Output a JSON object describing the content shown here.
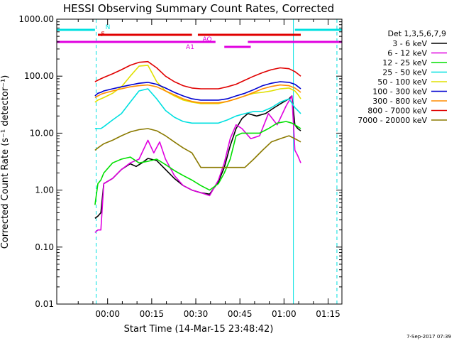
{
  "chart_data": {
    "type": "line",
    "title": "HESSI Observing Summary Count Rates, Corrected",
    "xlabel": "Start Time (14-Mar-15 23:48:42)",
    "ylabel": "Corrected Count Rate (s⁻¹ detector⁻¹)",
    "y_scale": "log",
    "ylim": [
      0.01,
      1000
    ],
    "xlim_minutes_from_start": [
      -6,
      91
    ],
    "x_ticks": [
      {
        "min": 11.3,
        "label": "00:00"
      },
      {
        "min": 26.3,
        "label": "00:15"
      },
      {
        "min": 41.3,
        "label": "00:30"
      },
      {
        "min": 56.3,
        "label": "00:45"
      },
      {
        "min": 71.3,
        "label": "01:00"
      },
      {
        "min": 86.3,
        "label": "01:15"
      }
    ],
    "y_ticks": [
      {
        "value": 1000,
        "label": "1000.00"
      },
      {
        "value": 100,
        "label": "100.00"
      },
      {
        "value": 10,
        "label": "10.00"
      },
      {
        "value": 1,
        "label": "1.00"
      },
      {
        "value": 0.1,
        "label": "0.10"
      },
      {
        "value": 0.01,
        "label": "0.01"
      }
    ],
    "legend_title": "Det 1,3,5,6,7,9",
    "legend_position": "right",
    "series": [
      {
        "name": "3 - 6 keV",
        "color": "#000000",
        "x": [
          7,
          8,
          9,
          10,
          13,
          16,
          19,
          21,
          23,
          25,
          28,
          31,
          34,
          37,
          40,
          43,
          46,
          49,
          51,
          53,
          55,
          57,
          59,
          62,
          65,
          68,
          71,
          73,
          74,
          75,
          76,
          77
        ],
        "y": [
          0.32,
          0.35,
          0.4,
          1.3,
          1.6,
          2.3,
          2.9,
          2.6,
          3.0,
          3.6,
          3.3,
          2.3,
          1.6,
          1.2,
          1.0,
          0.9,
          0.85,
          1.4,
          2.5,
          6,
          12,
          18,
          22,
          20,
          22,
          28,
          35,
          40,
          45,
          14,
          12,
          11
        ]
      },
      {
        "name": "6 - 12 keV",
        "color": "#e000e0",
        "x": [
          7,
          8,
          9,
          10,
          13,
          16,
          19,
          22,
          25,
          27,
          29,
          31,
          34,
          37,
          40,
          43,
          46,
          49,
          51,
          53,
          55,
          57,
          60,
          63,
          66,
          69,
          72,
          74,
          75,
          76,
          77
        ],
        "y": [
          0.18,
          0.2,
          0.2,
          1.3,
          1.6,
          2.3,
          3.0,
          3.5,
          7.5,
          4.5,
          7.0,
          3.5,
          1.8,
          1.2,
          1.0,
          0.9,
          0.8,
          1.5,
          3.0,
          8,
          14,
          12,
          8,
          9,
          22,
          14,
          30,
          45,
          5,
          4,
          3
        ]
      },
      {
        "name": "12 - 25 keV",
        "color": "#00e000",
        "x": [
          7,
          8,
          9,
          10,
          13,
          16,
          19,
          22,
          25,
          28,
          31,
          34,
          37,
          40,
          43,
          46,
          49,
          51,
          53,
          55,
          57,
          60,
          63,
          66,
          69,
          72,
          74,
          75,
          76,
          77
        ],
        "y": [
          0.55,
          1.3,
          1.5,
          2.0,
          3.0,
          3.5,
          3.8,
          3.0,
          3.2,
          3.5,
          2.8,
          2.2,
          1.8,
          1.5,
          1.2,
          1.0,
          1.3,
          2.0,
          3.5,
          9,
          10,
          10,
          10,
          12,
          15,
          16,
          15,
          14,
          13,
          12
        ]
      },
      {
        "name": "25 - 50 keV",
        "color": "#00e0e0",
        "x": [
          7,
          8,
          9,
          10,
          13,
          16,
          19,
          22,
          25,
          28,
          31,
          34,
          37,
          40,
          43,
          46,
          49,
          52,
          55,
          58,
          61,
          64,
          67,
          70,
          73,
          75,
          76,
          77
        ],
        "y": [
          12,
          12,
          12,
          13,
          17,
          22,
          35,
          55,
          60,
          40,
          25,
          19,
          16,
          15,
          15,
          15,
          15,
          17,
          20,
          22,
          24,
          24,
          28,
          35,
          40,
          28,
          25,
          22
        ]
      },
      {
        "name": "50 - 100 keV",
        "color": "#e0e000",
        "x": [
          7,
          8,
          9,
          10,
          13,
          16,
          19,
          22,
          25,
          28,
          31,
          34,
          37,
          40,
          43,
          46,
          49,
          52,
          55,
          58,
          61,
          64,
          67,
          70,
          73,
          75,
          76,
          77
        ],
        "y": [
          35,
          38,
          40,
          42,
          50,
          65,
          100,
          150,
          155,
          80,
          55,
          45,
          38,
          35,
          33,
          33,
          33,
          36,
          40,
          45,
          50,
          52,
          55,
          60,
          62,
          55,
          48,
          40
        ]
      },
      {
        "name": "100 - 300 keV",
        "color": "#0000d0",
        "x": [
          7,
          8,
          9,
          10,
          13,
          16,
          19,
          22,
          25,
          28,
          31,
          34,
          37,
          40,
          43,
          46,
          49,
          52,
          55,
          58,
          61,
          64,
          67,
          70,
          73,
          75,
          76,
          77
        ],
        "y": [
          45,
          50,
          52,
          55,
          60,
          65,
          70,
          75,
          78,
          72,
          62,
          52,
          45,
          40,
          38,
          38,
          38,
          40,
          45,
          50,
          58,
          68,
          75,
          80,
          78,
          72,
          66,
          60
        ]
      },
      {
        "name": "300 - 800 keV",
        "color": "#ff8c00",
        "x": [
          7,
          8,
          9,
          10,
          13,
          16,
          19,
          22,
          25,
          28,
          31,
          34,
          37,
          40,
          43,
          46,
          49,
          52,
          55,
          58,
          61,
          64,
          67,
          70,
          73,
          75,
          76,
          77
        ],
        "y": [
          42,
          45,
          48,
          50,
          55,
          60,
          65,
          68,
          70,
          65,
          55,
          47,
          40,
          36,
          34,
          34,
          34,
          36,
          40,
          45,
          52,
          60,
          66,
          70,
          68,
          62,
          57,
          52
        ]
      },
      {
        "name": "800 - 7000 keV",
        "color": "#e00000",
        "x": [
          7,
          8,
          9,
          10,
          13,
          16,
          19,
          22,
          25,
          28,
          31,
          34,
          37,
          40,
          43,
          46,
          49,
          52,
          55,
          58,
          61,
          64,
          67,
          70,
          73,
          75,
          76,
          77
        ],
        "y": [
          80,
          85,
          90,
          95,
          110,
          130,
          155,
          175,
          180,
          140,
          100,
          80,
          68,
          62,
          60,
          60,
          60,
          65,
          72,
          85,
          100,
          115,
          130,
          140,
          135,
          120,
          110,
          100
        ]
      },
      {
        "name": "7000 - 20000 keV",
        "color": "#8b7a00",
        "x": [
          7,
          8,
          9,
          10,
          13,
          16,
          19,
          22,
          25,
          28,
          31,
          34,
          37,
          40,
          43,
          46,
          49,
          52,
          55,
          58,
          61,
          64,
          67,
          70,
          73,
          75,
          76,
          77
        ],
        "y": [
          5,
          5.5,
          6,
          6.5,
          7.5,
          9,
          10.5,
          11.5,
          12,
          11,
          9,
          7,
          5.5,
          4.5,
          2.5,
          2.5,
          2.5,
          2.5,
          2.5,
          2.5,
          3.5,
          5,
          7,
          8,
          9,
          8,
          7.5,
          7
        ]
      }
    ],
    "flags": [
      {
        "label": "N",
        "color": "#00e0e0",
        "segments": [
          [
            -6,
            7
          ],
          [
            75,
            91
          ]
        ]
      },
      {
        "label": "F",
        "color": "#e00000",
        "segments": [
          [
            8,
            40
          ],
          [
            42,
            77
          ]
        ]
      },
      {
        "label": "AO",
        "color": "#e000e0",
        "segments": [
          [
            -6,
            48
          ],
          [
            59,
            91
          ]
        ]
      },
      {
        "label": "A1",
        "color": "#e000e0",
        "segments": [
          [
            51,
            60
          ]
        ]
      }
    ],
    "vertical_lines": [
      {
        "x": -6,
        "style": "solid",
        "color": "#00e0e0"
      },
      {
        "x": 7.4,
        "style": "dashed",
        "color": "#00e0e0"
      },
      {
        "x": 74.5,
        "style": "solid",
        "color": "#00e0e0"
      },
      {
        "x": 89.3,
        "style": "dashed",
        "color": "#00e0e0"
      }
    ],
    "footer": "7-Sep-2017 07:39"
  }
}
